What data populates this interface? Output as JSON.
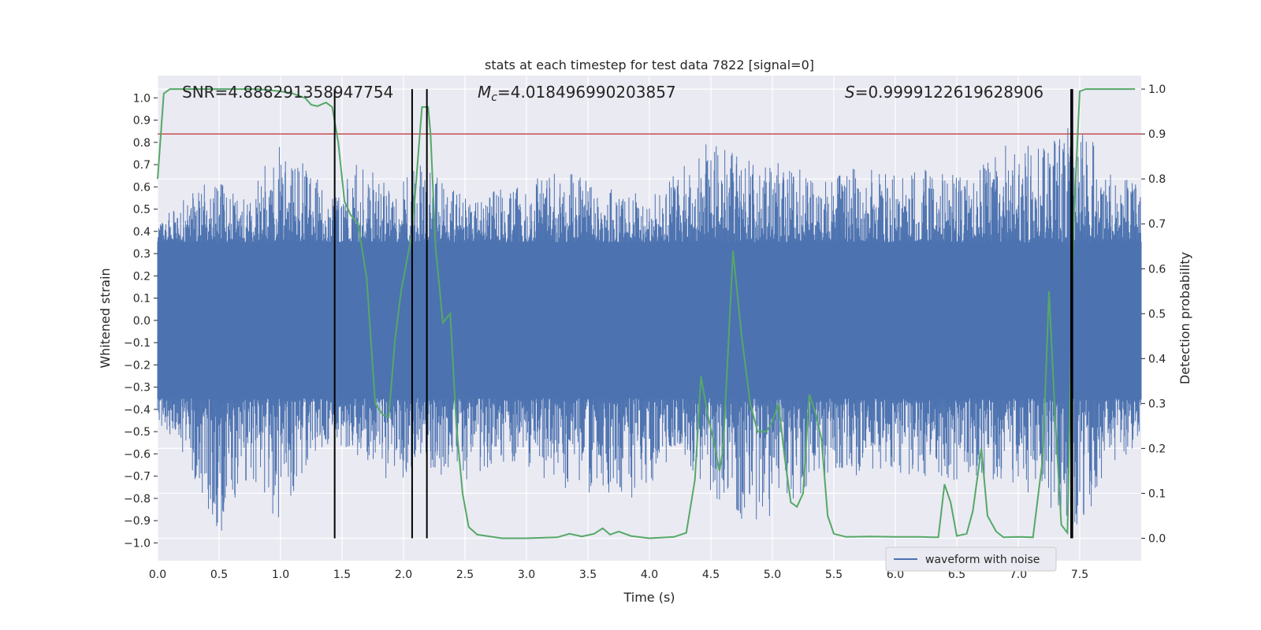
{
  "chart_data": {
    "type": "line",
    "title": "stats at each timestep for test data 7822 [signal=0]",
    "xlabel": "Time (s)",
    "ylabel_left": "Whitened strain",
    "ylabel_right": "Detection probability",
    "xlim": [
      0.0,
      8.0
    ],
    "ylim_left": [
      -1.08,
      1.1
    ],
    "ylim_right": [
      -0.05,
      1.03
    ],
    "x_ticks": [
      0.0,
      0.5,
      1.0,
      1.5,
      2.0,
      2.5,
      3.0,
      3.5,
      4.0,
      4.5,
      5.0,
      5.5,
      6.0,
      6.5,
      7.0,
      7.5
    ],
    "x_tick_labels": [
      "0.0",
      "0.5",
      "1.0",
      "1.5",
      "2.0",
      "2.5",
      "3.0",
      "3.5",
      "4.0",
      "4.5",
      "5.0",
      "5.5",
      "6.0",
      "6.5",
      "7.0",
      "7.5"
    ],
    "y_left_ticks": [
      -1.0,
      -0.9,
      -0.8,
      -0.7,
      -0.6,
      -0.5,
      -0.4,
      -0.3,
      -0.2,
      -0.1,
      0.0,
      0.1,
      0.2,
      0.3,
      0.4,
      0.5,
      0.6,
      0.7,
      0.8,
      0.9,
      1.0
    ],
    "y_left_tick_labels": [
      "−1.0",
      "−0.9",
      "−0.8",
      "−0.7",
      "−0.6",
      "−0.5",
      "−0.4",
      "−0.3",
      "−0.2",
      "−0.1",
      "0.0",
      "0.1",
      "0.2",
      "0.3",
      "0.4",
      "0.5",
      "0.6",
      "0.7",
      "0.8",
      "0.9",
      "1.0"
    ],
    "y_right_ticks": [
      0.0,
      0.1,
      0.2,
      0.3,
      0.4,
      0.5,
      0.6,
      0.7,
      0.8,
      0.9,
      1.0
    ],
    "y_right_tick_labels": [
      "0.0",
      "0.1",
      "0.2",
      "0.3",
      "0.4",
      "0.5",
      "0.6",
      "0.7",
      "0.8",
      "0.9",
      "1.0"
    ],
    "annotations": {
      "snr": "SNR=4.888291358947754",
      "mc_symbol": "M",
      "mc_sub": "c",
      "mc_value": "=4.018496990203857",
      "s_symbol": "S",
      "s_value": "=0.9999122619628906"
    },
    "threshold": {
      "value": 0.9,
      "axis": "right",
      "color": "#c44e52"
    },
    "vertical_lines": [
      1.44,
      2.07,
      2.19,
      7.43,
      7.44
    ],
    "vertical_line_range_right": [
      0.0,
      1.0
    ],
    "waveform": {
      "name": "waveform with noise",
      "color": "#4c72b0",
      "duration_s": 8.0,
      "core_amplitude": 0.35,
      "envelope_points": [
        [
          0.0,
          0.42,
          -0.45
        ],
        [
          0.25,
          0.6,
          -0.65
        ],
        [
          0.5,
          0.62,
          -0.97
        ],
        [
          0.75,
          0.55,
          -0.7
        ],
        [
          0.95,
          0.8,
          -0.98
        ],
        [
          1.25,
          0.68,
          -0.6
        ],
        [
          1.45,
          0.58,
          -0.55
        ],
        [
          1.65,
          0.75,
          -0.62
        ],
        [
          1.9,
          0.58,
          -0.78
        ],
        [
          2.15,
          0.72,
          -0.6
        ],
        [
          2.35,
          0.6,
          -0.78
        ],
        [
          2.6,
          0.55,
          -0.68
        ],
        [
          2.9,
          0.62,
          -0.65
        ],
        [
          3.3,
          0.7,
          -0.76
        ],
        [
          3.6,
          0.6,
          -0.78
        ],
        [
          3.9,
          0.58,
          -0.82
        ],
        [
          4.2,
          0.65,
          -0.6
        ],
        [
          4.5,
          0.83,
          -0.78
        ],
        [
          4.8,
          0.72,
          -0.92
        ],
        [
          5.1,
          0.72,
          -0.85
        ],
        [
          5.4,
          0.62,
          -0.7
        ],
        [
          5.7,
          0.7,
          -0.72
        ],
        [
          6.0,
          0.65,
          -0.68
        ],
        [
          6.3,
          0.72,
          -0.72
        ],
        [
          6.6,
          0.65,
          -0.72
        ],
        [
          6.9,
          0.8,
          -0.72
        ],
        [
          7.2,
          0.78,
          -0.82
        ],
        [
          7.5,
          0.92,
          -0.97
        ],
        [
          7.7,
          0.72,
          -0.7
        ],
        [
          8.0,
          0.6,
          -0.6
        ]
      ]
    },
    "detection_probability": {
      "color": "#55a868",
      "axis": "right",
      "x": [
        0.0,
        0.05,
        0.1,
        0.3,
        0.8,
        0.9,
        1.0,
        1.1,
        1.2,
        1.25,
        1.3,
        1.37,
        1.42,
        1.47,
        1.52,
        1.57,
        1.63,
        1.7,
        1.77,
        1.83,
        1.88,
        1.93,
        1.98,
        2.07,
        2.15,
        2.2,
        2.22,
        2.26,
        2.32,
        2.38,
        2.43,
        2.48,
        2.53,
        2.6,
        2.8,
        3.0,
        3.25,
        3.35,
        3.45,
        3.55,
        3.62,
        3.68,
        3.75,
        3.85,
        4.0,
        4.2,
        4.3,
        4.37,
        4.42,
        4.47,
        4.52,
        4.57,
        4.6,
        4.68,
        4.75,
        4.82,
        4.88,
        4.95,
        5.0,
        5.05,
        5.1,
        5.15,
        5.2,
        5.25,
        5.3,
        5.35,
        5.4,
        5.45,
        5.5,
        5.6,
        5.8,
        6.0,
        6.2,
        6.3,
        6.35,
        6.4,
        6.45,
        6.5,
        6.58,
        6.63,
        6.7,
        6.75,
        6.82,
        6.88,
        7.0,
        7.12,
        7.2,
        7.25,
        7.3,
        7.35,
        7.4,
        7.45,
        7.5,
        7.55,
        7.95
      ],
      "y": [
        0.8,
        0.99,
        1.0,
        1.0,
        1.0,
        0.998,
        0.995,
        0.99,
        0.98,
        0.965,
        0.962,
        0.97,
        0.96,
        0.88,
        0.75,
        0.72,
        0.7,
        0.58,
        0.3,
        0.275,
        0.27,
        0.44,
        0.55,
        0.68,
        0.96,
        0.96,
        0.9,
        0.65,
        0.48,
        0.5,
        0.25,
        0.1,
        0.025,
        0.008,
        0.0,
        0.0,
        0.002,
        0.01,
        0.004,
        0.01,
        0.022,
        0.008,
        0.015,
        0.005,
        0.0,
        0.003,
        0.012,
        0.13,
        0.36,
        0.28,
        0.22,
        0.15,
        0.2,
        0.64,
        0.45,
        0.3,
        0.237,
        0.237,
        0.26,
        0.3,
        0.18,
        0.08,
        0.07,
        0.1,
        0.32,
        0.28,
        0.22,
        0.05,
        0.01,
        0.003,
        0.004,
        0.003,
        0.003,
        0.002,
        0.002,
        0.12,
        0.08,
        0.005,
        0.01,
        0.06,
        0.2,
        0.05,
        0.015,
        0.002,
        0.003,
        0.002,
        0.18,
        0.55,
        0.27,
        0.03,
        0.012,
        0.7,
        0.995,
        1.0,
        1.0
      ]
    },
    "legend": {
      "entries": [
        "waveform with noise"
      ],
      "placement": "bottom-right"
    },
    "grid": true
  }
}
